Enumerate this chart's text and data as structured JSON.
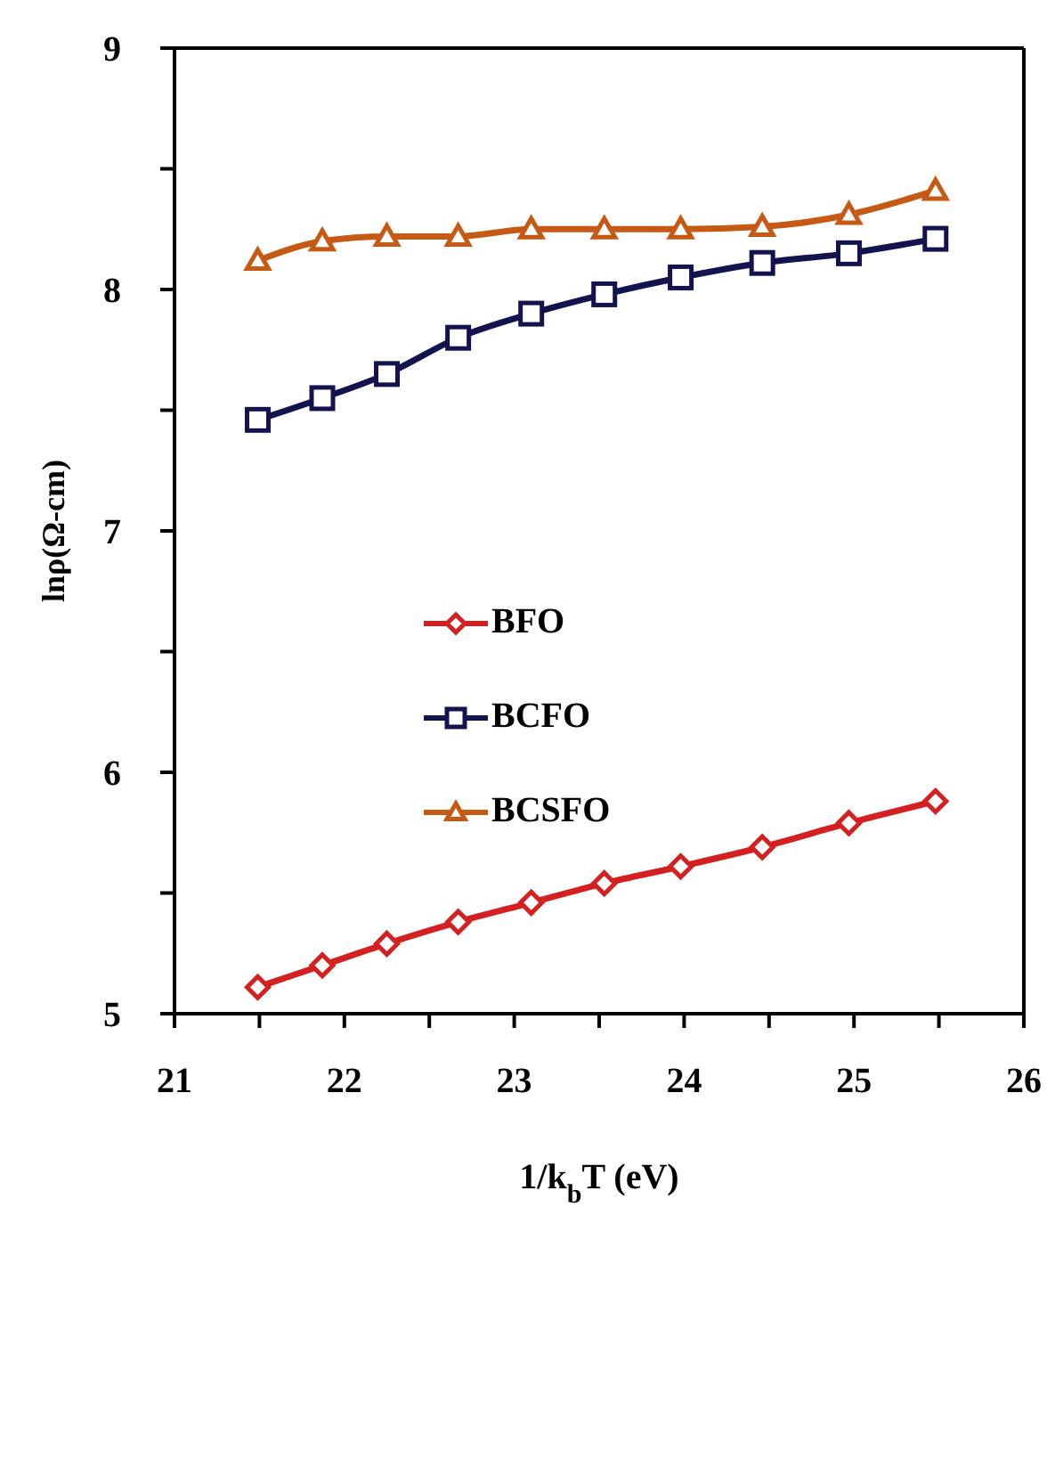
{
  "chart_data": {
    "type": "line",
    "xlabel": "1/k$_{b}$T (eV)",
    "ylabel": "lnρ(Ω-cm)",
    "x": [
      21.49,
      21.87,
      22.25,
      22.67,
      23.1,
      23.53,
      23.98,
      24.46,
      24.97,
      25.48
    ],
    "series": [
      {
        "name": "BFO",
        "color": "#d42020",
        "marker": "diamond",
        "values": [
          5.11,
          5.2,
          5.29,
          5.38,
          5.46,
          5.54,
          5.61,
          5.69,
          5.79,
          5.88
        ]
      },
      {
        "name": "BCFO",
        "color": "#13134f",
        "marker": "square",
        "values": [
          7.46,
          7.55,
          7.65,
          7.8,
          7.9,
          7.98,
          8.05,
          8.11,
          8.15,
          8.21
        ]
      },
      {
        "name": "BCSFO",
        "color": "#c65a14",
        "marker": "triangle",
        "values": [
          8.12,
          8.2,
          8.22,
          8.22,
          8.25,
          8.25,
          8.25,
          8.26,
          8.31,
          8.41
        ]
      }
    ],
    "xlim": [
      21,
      26
    ],
    "xticks": [
      21,
      {
        "value": 21.5,
        "label": null
      },
      22,
      {
        "value": 22.5,
        "label": null
      },
      23,
      {
        "value": 23.5,
        "label": null
      },
      24,
      {
        "value": 24.5,
        "label": null
      },
      25,
      {
        "value": 25.5,
        "label": null
      },
      26
    ],
    "ylim": [
      5,
      9
    ],
    "yticks": [
      5,
      {
        "value": 5.5,
        "label": null
      },
      6,
      {
        "value": 6.5,
        "label": null
      },
      7,
      {
        "value": 7.5,
        "label": null
      },
      8,
      {
        "value": 8.5,
        "label": null
      },
      9
    ],
    "grid": false,
    "legend": "center",
    "line_style": "solid"
  }
}
